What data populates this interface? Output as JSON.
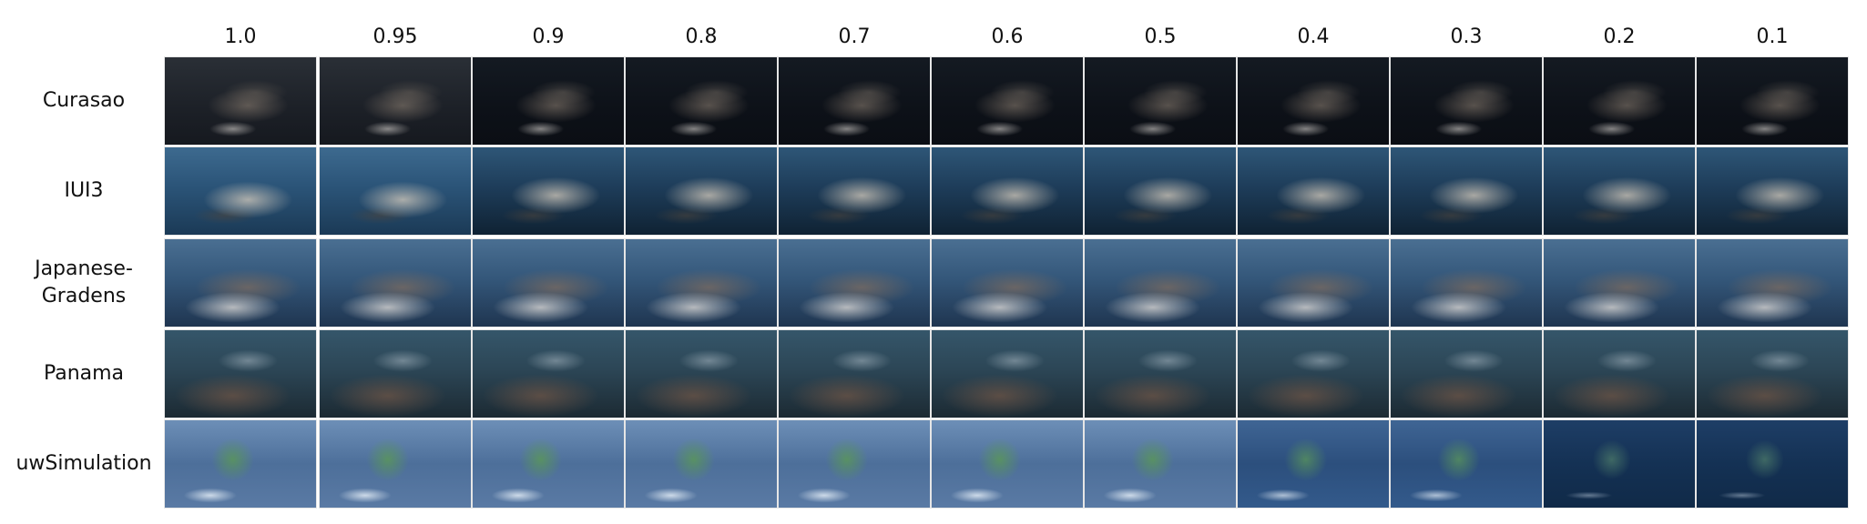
{
  "figure": {
    "columns": [
      "1.0",
      "0.95",
      "0.9",
      "0.8",
      "0.7",
      "0.6",
      "0.5",
      "0.4",
      "0.3",
      "0.2",
      "0.1"
    ],
    "rows": [
      {
        "label": "Curasao"
      },
      {
        "label": "IUI3"
      },
      {
        "label": "Japanese-\nGradens"
      },
      {
        "label": "Panama"
      },
      {
        "label": "uwSimulation"
      }
    ]
  }
}
